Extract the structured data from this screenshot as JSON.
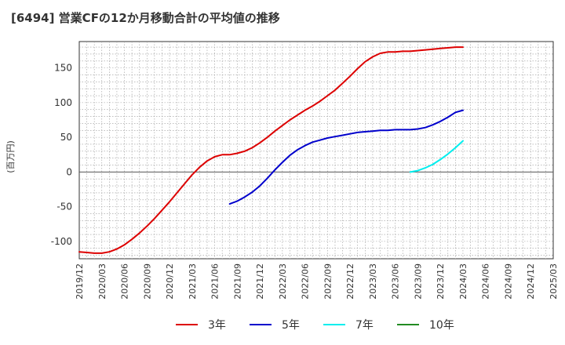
{
  "chart_data": {
    "type": "line",
    "title": "[6494]  営業CFの12か月移動合計の平均値の推移",
    "ylabel": "(百万円)",
    "ylim": [
      -125,
      188
    ],
    "yticks": [
      150,
      100,
      50,
      0,
      -50,
      -100
    ],
    "xticks": [
      "2019/12",
      "2020/03",
      "2020/06",
      "2020/09",
      "2020/12",
      "2021/03",
      "2021/06",
      "2021/09",
      "2021/12",
      "2022/03",
      "2022/06",
      "2022/09",
      "2022/12",
      "2023/03",
      "2023/06",
      "2023/09",
      "2023/12",
      "2024/03",
      "2024/06",
      "2024/09",
      "2024/12",
      "2025/03"
    ],
    "grid": true,
    "legend_position": "bottom",
    "series": [
      {
        "name": "3年",
        "color": "#dd0000",
        "x": [
          "2019/12",
          "2020/01",
          "2020/02",
          "2020/03",
          "2020/04",
          "2020/05",
          "2020/06",
          "2020/07",
          "2020/08",
          "2020/09",
          "2020/10",
          "2020/11",
          "2020/12",
          "2021/01",
          "2021/02",
          "2021/03",
          "2021/04",
          "2021/05",
          "2021/06",
          "2021/07",
          "2021/08",
          "2021/09",
          "2021/10",
          "2021/11",
          "2021/12",
          "2022/01",
          "2022/02",
          "2022/03",
          "2022/04",
          "2022/05",
          "2022/06",
          "2022/07",
          "2022/08",
          "2022/09",
          "2022/10",
          "2022/11",
          "2022/12",
          "2023/01",
          "2023/02",
          "2023/03",
          "2023/04",
          "2023/05",
          "2023/06",
          "2023/07",
          "2023/08",
          "2023/09",
          "2023/10",
          "2023/11",
          "2023/12",
          "2024/01",
          "2024/02",
          "2024/03"
        ],
        "values": [
          -115,
          -116,
          -117,
          -117,
          -115,
          -111,
          -105,
          -97,
          -88,
          -78,
          -67,
          -55,
          -43,
          -30,
          -17,
          -4,
          7,
          16,
          22,
          25,
          25,
          27,
          30,
          35,
          42,
          50,
          59,
          67,
          75,
          82,
          89,
          95,
          102,
          110,
          118,
          128,
          138,
          149,
          159,
          166,
          171,
          173,
          173,
          174,
          174,
          175,
          176,
          177,
          178,
          179,
          180,
          180
        ]
      },
      {
        "name": "5年",
        "color": "#0000cc",
        "x": [
          "2021/08",
          "2021/09",
          "2021/10",
          "2021/11",
          "2021/12",
          "2022/01",
          "2022/02",
          "2022/03",
          "2022/04",
          "2022/05",
          "2022/06",
          "2022/07",
          "2022/08",
          "2022/09",
          "2022/10",
          "2022/11",
          "2022/12",
          "2023/01",
          "2023/02",
          "2023/03",
          "2023/04",
          "2023/05",
          "2023/06",
          "2023/07",
          "2023/08",
          "2023/09",
          "2023/10",
          "2023/11",
          "2023/12",
          "2024/01",
          "2024/02",
          "2024/03"
        ],
        "values": [
          -46,
          -42,
          -36,
          -29,
          -20,
          -9,
          3,
          14,
          24,
          32,
          38,
          43,
          46,
          49,
          51,
          53,
          55,
          57,
          58,
          59,
          60,
          60,
          61,
          61,
          61,
          62,
          64,
          68,
          73,
          79,
          86,
          89
        ]
      },
      {
        "name": "7年",
        "color": "#00eeee",
        "x": [
          "2023/08",
          "2023/09",
          "2023/10",
          "2023/11",
          "2023/12",
          "2024/01",
          "2024/02",
          "2024/03"
        ],
        "values": [
          0,
          2,
          6,
          11,
          18,
          26,
          35,
          45
        ]
      },
      {
        "name": "10年",
        "color": "#228b22",
        "x": [],
        "values": []
      }
    ]
  }
}
